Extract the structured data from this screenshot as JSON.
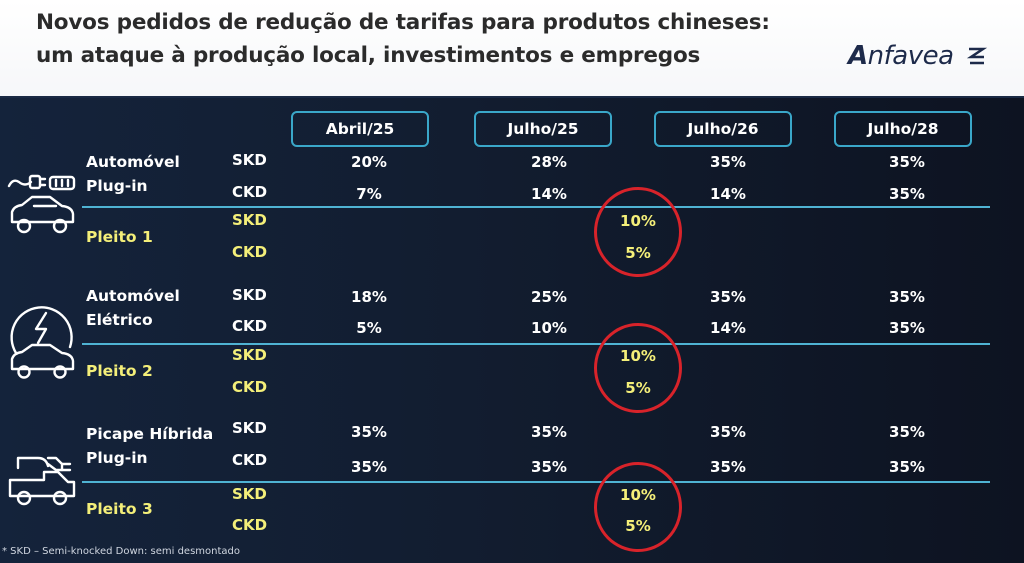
{
  "title": {
    "line1": "Novos pedidos de redução de tarifas para produtos chineses:",
    "line2": "um ataque à produção local, investimentos e empregos"
  },
  "logo": {
    "a": "A",
    "rest": "nfavea"
  },
  "columns": [
    "Abril/25",
    "Julho/25",
    "Julho/26",
    "Julho/28"
  ],
  "groups": [
    {
      "icon": "plugin-car-icon",
      "name_line1": "Automóvel",
      "name_line2": "Plug-in",
      "rows": [
        {
          "type": "SKD",
          "values": [
            "20%",
            "28%",
            "35%",
            "35%"
          ]
        },
        {
          "type": "CKD",
          "values": [
            "7%",
            "14%",
            "14%",
            "35%"
          ]
        }
      ],
      "pleito": {
        "label": "Pleito 1",
        "rows": [
          {
            "type": "SKD",
            "value": "10%"
          },
          {
            "type": "CKD",
            "value": "5%"
          }
        ]
      }
    },
    {
      "icon": "electric-car-icon",
      "name_line1": "Automóvel",
      "name_line2": "Elétrico",
      "rows": [
        {
          "type": "SKD",
          "values": [
            "18%",
            "25%",
            "35%",
            "35%"
          ]
        },
        {
          "type": "CKD",
          "values": [
            "5%",
            "10%",
            "14%",
            "35%"
          ]
        }
      ],
      "pleito": {
        "label": "Pleito 2",
        "rows": [
          {
            "type": "SKD",
            "value": "10%"
          },
          {
            "type": "CKD",
            "value": "5%"
          }
        ]
      }
    },
    {
      "icon": "hybrid-pickup-icon",
      "name_line1": "Picape Híbrida",
      "name_line2": "Plug-in",
      "rows": [
        {
          "type": "SKD",
          "values": [
            "35%",
            "35%",
            "35%",
            "35%"
          ]
        },
        {
          "type": "CKD",
          "values": [
            "35%",
            "35%",
            "35%",
            "35%"
          ]
        }
      ],
      "pleito": {
        "label": "Pleito 3",
        "rows": [
          {
            "type": "SKD",
            "value": "10%"
          },
          {
            "type": "CKD",
            "value": "5%"
          }
        ]
      }
    }
  ],
  "footnote": "* SKD – Semi-knocked Down: semi desmontado",
  "colors": {
    "accent": "#4fb3d3",
    "highlight": "#f4ef79",
    "circle": "#d8232a"
  }
}
